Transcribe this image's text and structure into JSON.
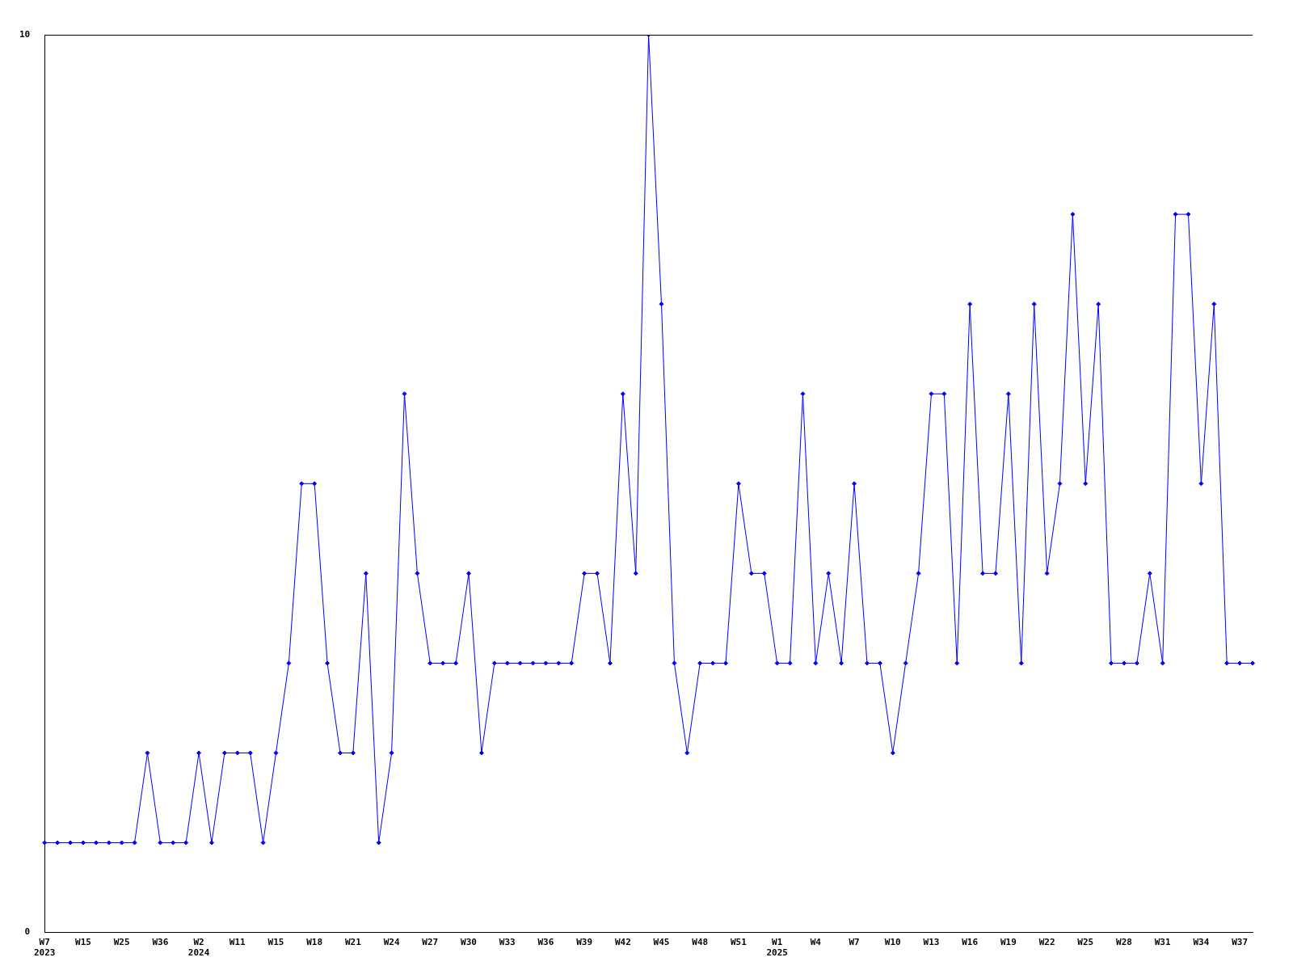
{
  "chart_data": {
    "type": "line",
    "categories": [
      "W7\n2023",
      null,
      null,
      "W15",
      null,
      null,
      "W25",
      null,
      null,
      "W36",
      null,
      null,
      "W2\n2024",
      null,
      null,
      "W11",
      null,
      null,
      "W15",
      null,
      null,
      "W18",
      null,
      null,
      "W21",
      null,
      null,
      "W24",
      null,
      null,
      "W27",
      null,
      null,
      "W30",
      null,
      null,
      "W33",
      null,
      null,
      "W36",
      null,
      null,
      "W39",
      null,
      null,
      "W42",
      null,
      null,
      "W45",
      null,
      null,
      "W48",
      null,
      null,
      "W51",
      null,
      null,
      "W1\n2025",
      null,
      null,
      "W4",
      null,
      null,
      "W7",
      null,
      null,
      "W10",
      null,
      null,
      "W13",
      null,
      null,
      "W16",
      null,
      null,
      "W19",
      null,
      null,
      "W22",
      null,
      null,
      "W25",
      null,
      null,
      "W28",
      null,
      null,
      "W31",
      null,
      null,
      "W34",
      null,
      null,
      "W37",
      null
    ],
    "series": [
      {
        "color": "#0000ff",
        "values": [
          1,
          1,
          1,
          1,
          1,
          1,
          1,
          1,
          2,
          1,
          1,
          1,
          2,
          1,
          2,
          2,
          2,
          1,
          2,
          3,
          5,
          5,
          3,
          2,
          2,
          4,
          1,
          2,
          6,
          4,
          3,
          3,
          3,
          4,
          2,
          3,
          3,
          3,
          3,
          3,
          3,
          3,
          4,
          4,
          3,
          6,
          4,
          10,
          7,
          3,
          2,
          3,
          3,
          3,
          5,
          4,
          4,
          3,
          3,
          6,
          3,
          4,
          3,
          5,
          3,
          3,
          2,
          3,
          4,
          6,
          6,
          3,
          7,
          4,
          4,
          6,
          3,
          7,
          4,
          5,
          8,
          5,
          7,
          3,
          3,
          3,
          4,
          3,
          8,
          8,
          5,
          7,
          3,
          3,
          3
        ]
      }
    ],
    "ylim": [
      0,
      10
    ],
    "yticks": [
      0,
      10
    ],
    "grid": false,
    "legend": false,
    "marker": "diamond",
    "line_style": "solid"
  }
}
